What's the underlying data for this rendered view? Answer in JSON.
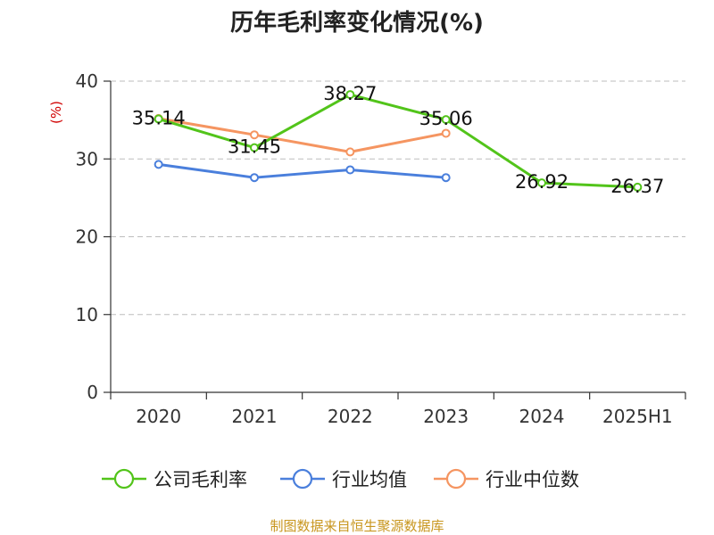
{
  "chart_data": {
    "type": "line",
    "title": "历年毛利率变化情况(%)",
    "ylabel": "(%)",
    "xlabel": "",
    "categories": [
      "2020",
      "2021",
      "2022",
      "2023",
      "2024",
      "2025H1"
    ],
    "yticks": [
      0,
      10,
      20,
      30,
      40
    ],
    "ylim": [
      0,
      40
    ],
    "grid": true,
    "legend_position": "bottom",
    "series": [
      {
        "name": "公司毛利率",
        "color": "#52c41a",
        "values": [
          35.14,
          31.45,
          38.27,
          35.06,
          26.92,
          26.37
        ],
        "show_labels": true
      },
      {
        "name": "行业均值",
        "color": "#4a7fdc",
        "values": [
          29.3,
          27.6,
          28.6,
          27.6,
          null,
          null
        ],
        "show_labels": false
      },
      {
        "name": "行业中位数",
        "color": "#f59561",
        "values": [
          35.2,
          33.1,
          30.9,
          33.3,
          null,
          null
        ],
        "show_labels": false
      }
    ],
    "source": "制图数据来自恒生聚源数据库"
  }
}
